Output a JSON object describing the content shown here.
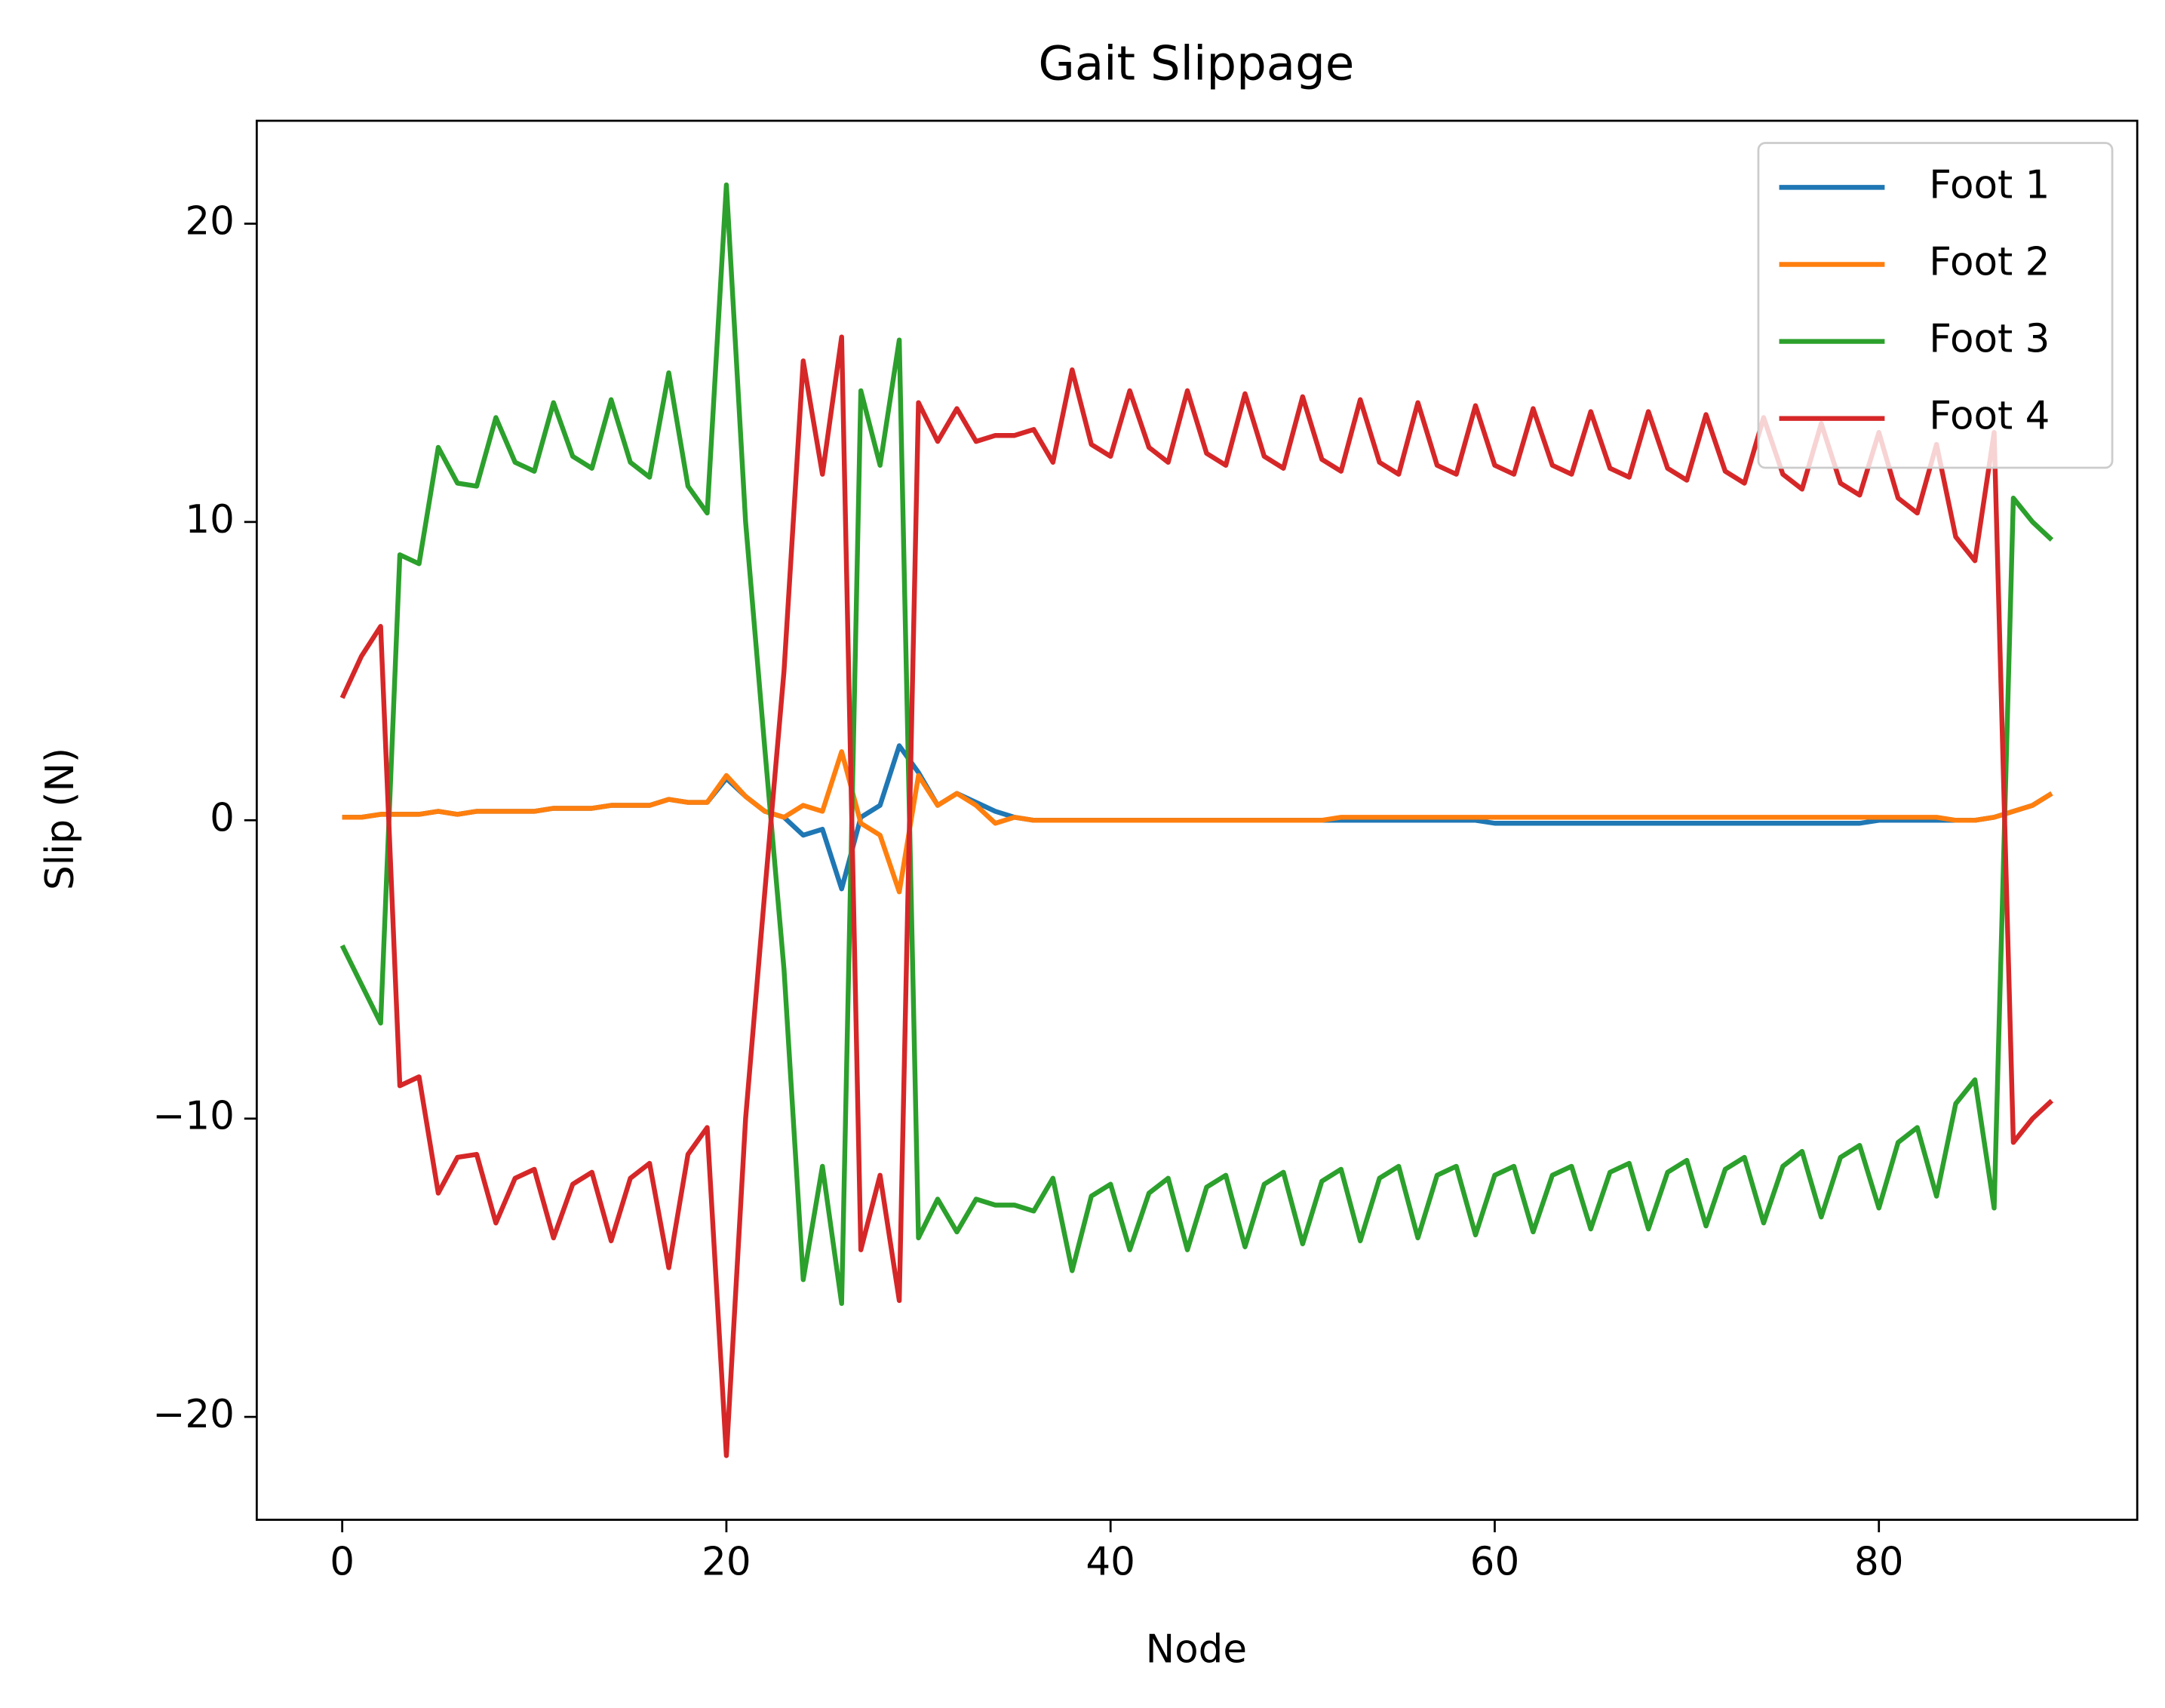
{
  "chart_data": {
    "type": "line",
    "title": "Gait Slippage",
    "x_label": "Node",
    "y_label": "Slip (N)",
    "x": [
      0,
      1,
      2,
      3,
      4,
      5,
      6,
      7,
      8,
      9,
      10,
      11,
      12,
      13,
      14,
      15,
      16,
      17,
      18,
      19,
      20,
      21,
      22,
      23,
      24,
      25,
      26,
      27,
      28,
      29,
      30,
      31,
      32,
      33,
      34,
      35,
      36,
      37,
      38,
      39,
      40,
      41,
      42,
      43,
      44,
      45,
      46,
      47,
      48,
      49,
      50,
      51,
      52,
      53,
      54,
      55,
      56,
      57,
      58,
      59,
      60,
      61,
      62,
      63,
      64,
      65,
      66,
      67,
      68,
      69,
      70,
      71,
      72,
      73,
      74,
      75,
      76,
      77,
      78,
      79,
      80,
      81,
      82,
      83,
      84,
      85,
      86,
      87,
      88,
      89
    ],
    "series": [
      {
        "name": "Foot 1",
        "color": "#1f77b4",
        "values": [
          0.1,
          0.1,
          0.2,
          0.2,
          0.2,
          0.3,
          0.2,
          0.3,
          0.3,
          0.3,
          0.3,
          0.4,
          0.4,
          0.4,
          0.5,
          0.5,
          0.5,
          0.7,
          0.6,
          0.6,
          1.4,
          0.8,
          0.3,
          0.1,
          -0.5,
          -0.3,
          -2.3,
          0.1,
          0.5,
          2.5,
          1.6,
          0.5,
          0.9,
          0.6,
          0.3,
          0.1,
          0.0,
          0.0,
          0.0,
          0.0,
          0.0,
          0.0,
          0.0,
          0.0,
          0.0,
          0.0,
          0.0,
          0.0,
          0.0,
          0.0,
          0.0,
          0.0,
          0.0,
          0.0,
          0.0,
          0.0,
          0.0,
          0.0,
          0.0,
          0.0,
          -0.1,
          -0.1,
          -0.1,
          -0.1,
          -0.1,
          -0.1,
          -0.1,
          -0.1,
          -0.1,
          -0.1,
          -0.1,
          -0.1,
          -0.1,
          -0.1,
          -0.1,
          -0.1,
          -0.1,
          -0.1,
          -0.1,
          -0.1,
          0.0,
          0.0,
          0.0,
          0.0,
          0.0,
          0.0,
          0.1,
          0.3,
          0.5,
          0.9
        ]
      },
      {
        "name": "Foot 2",
        "color": "#ff7f0e",
        "values": [
          0.1,
          0.1,
          0.2,
          0.2,
          0.2,
          0.3,
          0.2,
          0.3,
          0.3,
          0.3,
          0.3,
          0.4,
          0.4,
          0.4,
          0.5,
          0.5,
          0.5,
          0.7,
          0.6,
          0.6,
          1.5,
          0.8,
          0.3,
          0.1,
          0.5,
          0.3,
          2.3,
          -0.1,
          -0.5,
          -2.4,
          1.5,
          0.5,
          0.9,
          0.5,
          -0.1,
          0.1,
          0.0,
          0.0,
          0.0,
          0.0,
          0.0,
          0.0,
          0.0,
          0.0,
          0.0,
          0.0,
          0.0,
          0.0,
          0.0,
          0.0,
          0.0,
          0.0,
          0.1,
          0.1,
          0.1,
          0.1,
          0.1,
          0.1,
          0.1,
          0.1,
          0.1,
          0.1,
          0.1,
          0.1,
          0.1,
          0.1,
          0.1,
          0.1,
          0.1,
          0.1,
          0.1,
          0.1,
          0.1,
          0.1,
          0.1,
          0.1,
          0.1,
          0.1,
          0.1,
          0.1,
          0.1,
          0.1,
          0.1,
          0.1,
          0.0,
          0.0,
          0.1,
          0.3,
          0.5,
          0.9
        ]
      },
      {
        "name": "Foot 3",
        "color": "#2ca02c",
        "values": [
          -4.2,
          -5.5,
          -6.8,
          8.9,
          8.6,
          12.5,
          11.3,
          11.2,
          13.5,
          12.0,
          11.7,
          14.0,
          12.2,
          11.8,
          14.1,
          12.0,
          11.5,
          15.0,
          11.2,
          10.3,
          21.3,
          10.0,
          2.4,
          -5.0,
          -15.4,
          -11.6,
          -16.2,
          14.4,
          11.9,
          16.1,
          -14.0,
          -12.7,
          -13.8,
          -12.7,
          -12.9,
          -12.9,
          -13.1,
          -12.0,
          -15.1,
          -12.6,
          -12.2,
          -14.4,
          -12.5,
          -12.0,
          -14.4,
          -12.3,
          -11.9,
          -14.3,
          -12.2,
          -11.8,
          -14.2,
          -12.1,
          -11.7,
          -14.1,
          -12.0,
          -11.6,
          -14.0,
          -11.9,
          -11.6,
          -13.9,
          -11.9,
          -11.6,
          -13.8,
          -11.9,
          -11.6,
          -13.7,
          -11.8,
          -11.5,
          -13.7,
          -11.8,
          -11.4,
          -13.6,
          -11.7,
          -11.3,
          -13.5,
          -11.6,
          -11.1,
          -13.3,
          -11.3,
          -10.9,
          -13.0,
          -10.8,
          -10.3,
          -12.6,
          -9.5,
          -8.7,
          -13.0,
          10.8,
          10.0,
          9.4
        ]
      },
      {
        "name": "Foot 4",
        "color": "#d62728",
        "values": [
          4.1,
          5.5,
          6.5,
          -8.9,
          -8.6,
          -12.5,
          -11.3,
          -11.2,
          -13.5,
          -12.0,
          -11.7,
          -14.0,
          -12.2,
          -11.8,
          -14.1,
          -12.0,
          -11.5,
          -15.0,
          -11.2,
          -10.3,
          -21.3,
          -10.0,
          -2.4,
          5.0,
          15.4,
          11.6,
          16.2,
          -14.4,
          -11.9,
          -16.1,
          14.0,
          12.7,
          13.8,
          12.7,
          12.9,
          12.9,
          13.1,
          12.0,
          15.1,
          12.6,
          12.2,
          14.4,
          12.5,
          12.0,
          14.4,
          12.3,
          11.9,
          14.3,
          12.2,
          11.8,
          14.2,
          12.1,
          11.7,
          14.1,
          12.0,
          11.6,
          14.0,
          11.9,
          11.6,
          13.9,
          11.9,
          11.6,
          13.8,
          11.9,
          11.6,
          13.7,
          11.8,
          11.5,
          13.7,
          11.8,
          11.4,
          13.6,
          11.7,
          11.3,
          13.5,
          11.6,
          11.1,
          13.3,
          11.3,
          10.9,
          13.0,
          10.8,
          10.3,
          12.6,
          9.5,
          8.7,
          13.0,
          -10.8,
          -10.0,
          -9.4
        ]
      }
    ],
    "xlim": [
      -4.45,
      93.45
    ],
    "ylim": [
      -23.45,
      23.45
    ],
    "xticks": [
      0,
      20,
      40,
      60,
      80
    ],
    "yticks": [
      {
        "value": -20,
        "label": "−20"
      },
      {
        "value": -10,
        "label": "−10"
      },
      0,
      10,
      20
    ],
    "grid": false,
    "legend": "upper right"
  }
}
